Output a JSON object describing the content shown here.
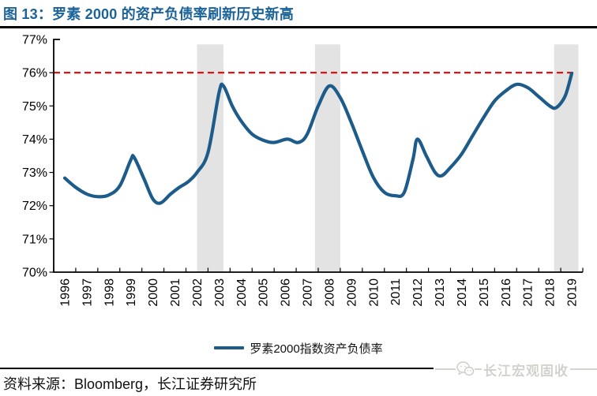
{
  "header": {
    "title": "图 13：罗素 2000 的资产负债率刷新历史新高"
  },
  "chart_data": {
    "type": "line",
    "title": "图 13：罗素 2000 的资产负债率刷新历史新高",
    "xlabel": "",
    "ylabel": "",
    "ylim": [
      70,
      77
    ],
    "ytick_labels": [
      "70%",
      "71%",
      "72%",
      "73%",
      "74%",
      "75%",
      "76%",
      "77%"
    ],
    "x_years": [
      1996,
      1997,
      1998,
      1999,
      2000,
      2001,
      2002,
      2003,
      2004,
      2005,
      2006,
      2007,
      2008,
      2009,
      2010,
      2011,
      2012,
      2013,
      2014,
      2015,
      2016,
      2017,
      2018,
      2019
    ],
    "grid": false,
    "legend_position": "bottom",
    "series": [
      {
        "name": "罗素2000指数资产负债率",
        "color": "#1D5C8A",
        "points": [
          [
            1996.0,
            72.83
          ],
          [
            1996.5,
            72.55
          ],
          [
            1997.0,
            72.35
          ],
          [
            1997.5,
            72.27
          ],
          [
            1998.0,
            72.32
          ],
          [
            1998.5,
            72.6
          ],
          [
            1999.0,
            73.38
          ],
          [
            1999.15,
            73.45
          ],
          [
            1999.6,
            72.8
          ],
          [
            2000.0,
            72.2
          ],
          [
            2000.35,
            72.08
          ],
          [
            2000.8,
            72.35
          ],
          [
            2001.2,
            72.55
          ],
          [
            2001.6,
            72.72
          ],
          [
            2002.0,
            73.0
          ],
          [
            2002.5,
            73.6
          ],
          [
            2003.0,
            75.4
          ],
          [
            2003.2,
            75.6
          ],
          [
            2003.6,
            75.0
          ],
          [
            2004.0,
            74.55
          ],
          [
            2004.5,
            74.15
          ],
          [
            2005.0,
            73.97
          ],
          [
            2005.5,
            73.9
          ],
          [
            2006.1,
            74.0
          ],
          [
            2006.6,
            73.9
          ],
          [
            2007.0,
            74.15
          ],
          [
            2007.5,
            75.0
          ],
          [
            2008.0,
            75.6
          ],
          [
            2008.5,
            75.25
          ],
          [
            2009.0,
            74.5
          ],
          [
            2009.5,
            73.65
          ],
          [
            2010.0,
            72.85
          ],
          [
            2010.5,
            72.4
          ],
          [
            2011.0,
            72.3
          ],
          [
            2011.4,
            72.4
          ],
          [
            2011.8,
            73.4
          ],
          [
            2012.0,
            74.0
          ],
          [
            2012.4,
            73.5
          ],
          [
            2012.8,
            73.0
          ],
          [
            2013.1,
            72.9
          ],
          [
            2013.5,
            73.15
          ],
          [
            2014.0,
            73.55
          ],
          [
            2014.5,
            74.1
          ],
          [
            2015.0,
            74.65
          ],
          [
            2015.5,
            75.15
          ],
          [
            2016.0,
            75.45
          ],
          [
            2016.5,
            75.65
          ],
          [
            2017.0,
            75.55
          ],
          [
            2017.5,
            75.28
          ],
          [
            2018.0,
            75.0
          ],
          [
            2018.3,
            74.95
          ],
          [
            2018.7,
            75.3
          ],
          [
            2019.0,
            75.98
          ]
        ]
      }
    ],
    "threshold_line": {
      "value": 76,
      "color": "#E01212",
      "style": "dashed"
    },
    "highlight_bands": [
      {
        "from": 2002.0,
        "to": 2003.2
      },
      {
        "from": 2007.35,
        "to": 2008.5
      },
      {
        "from": 2018.2,
        "to": 2019.3
      }
    ],
    "band_color": "#E3E3E3",
    "band_top_value": 76.85
  },
  "legend": {
    "label": "罗素2000指数资产负债率"
  },
  "footer": {
    "source": "资料来源：Bloomberg，长江证券研究所",
    "watermark": "长江宏观固收"
  },
  "colors": {
    "title": "#1B6398",
    "series_line": "#1D5C8A",
    "threshold": "#E01212",
    "band": "#E3E3E3",
    "axis": "#000000",
    "watermark": "#D2D2CE"
  }
}
